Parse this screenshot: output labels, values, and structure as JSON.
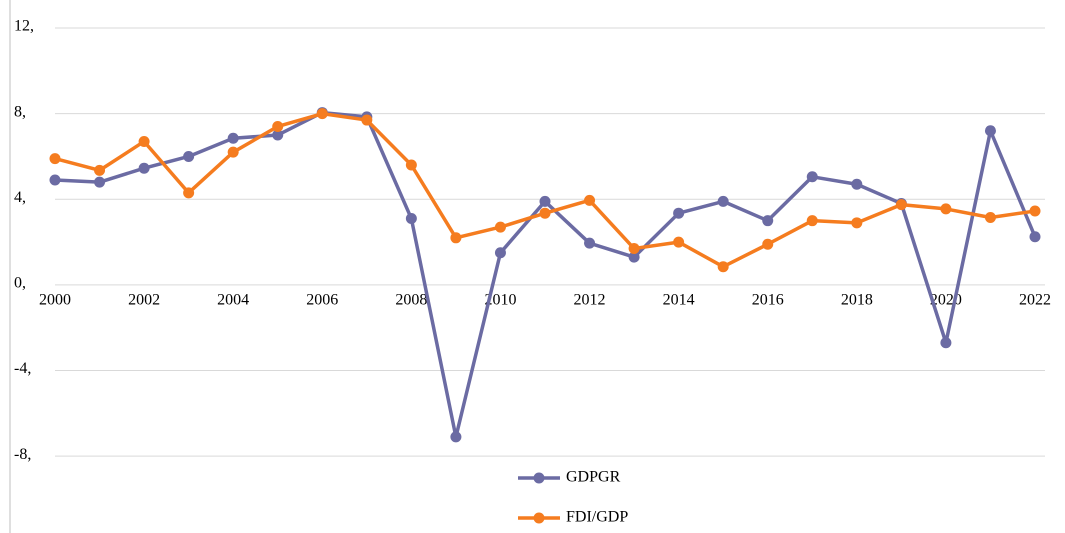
{
  "chart_data": {
    "type": "line",
    "x": [
      2000,
      2001,
      2002,
      2003,
      2004,
      2005,
      2006,
      2007,
      2008,
      2009,
      2010,
      2011,
      2012,
      2013,
      2014,
      2015,
      2016,
      2017,
      2018,
      2019,
      2020,
      2021,
      2022
    ],
    "xlim": [
      2000,
      2022
    ],
    "xticks": [
      2000,
      2002,
      2004,
      2006,
      2008,
      2010,
      2012,
      2014,
      2016,
      2018,
      2020,
      2022
    ],
    "ylim": [
      -10,
      12
    ],
    "yticks": [
      {
        "value": 12,
        "label": "12,"
      },
      {
        "value": 8,
        "label": "8,"
      },
      {
        "value": 4,
        "label": "4,"
      },
      {
        "value": 0,
        "label": "0,"
      },
      {
        "value": -4,
        "label": "-4,"
      },
      {
        "value": -8,
        "label": "-8,"
      }
    ],
    "grid": true,
    "legend": "bottom",
    "series": [
      {
        "name": "GDPGR",
        "color": "#6b6ba3",
        "values": [
          4.9,
          4.8,
          5.45,
          6.0,
          6.85,
          7.0,
          8.05,
          7.85,
          3.1,
          -7.1,
          1.5,
          3.9,
          1.95,
          1.3,
          3.35,
          3.9,
          3.0,
          5.05,
          4.7,
          3.8,
          -2.7,
          7.2,
          2.25
        ]
      },
      {
        "name": "FDI/GDP",
        "color": "#f57c1f",
        "values": [
          5.9,
          5.35,
          6.7,
          4.3,
          6.2,
          7.4,
          8.0,
          7.7,
          5.6,
          2.2,
          2.7,
          3.35,
          3.95,
          1.7,
          2.0,
          0.85,
          1.9,
          3.0,
          2.9,
          3.75,
          3.55,
          3.15,
          3.45
        ]
      }
    ]
  }
}
